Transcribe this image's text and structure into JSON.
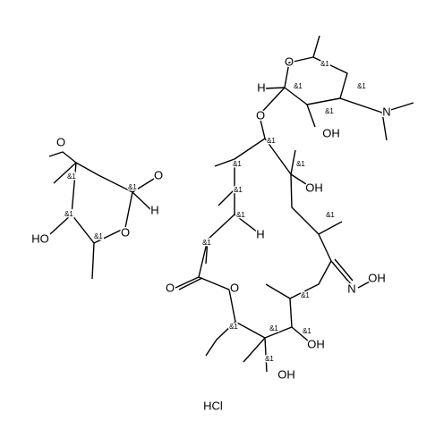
{
  "labels": [
    "&1",
    "O",
    "H",
    "&1",
    "&1",
    "&1",
    "N",
    "OH",
    "O",
    "&1",
    "&1",
    "&1",
    "OH",
    "&1",
    "H",
    "&1",
    "&1",
    "&1",
    "O",
    "O",
    "N",
    "OH",
    "&1",
    "&1",
    "&1",
    "&1",
    "OH",
    "&1",
    "OH",
    "O",
    "&1",
    "O",
    "&1",
    "H",
    "O",
    "&1",
    "HO",
    "&1"
  ],
  "salt": "HCl"
}
